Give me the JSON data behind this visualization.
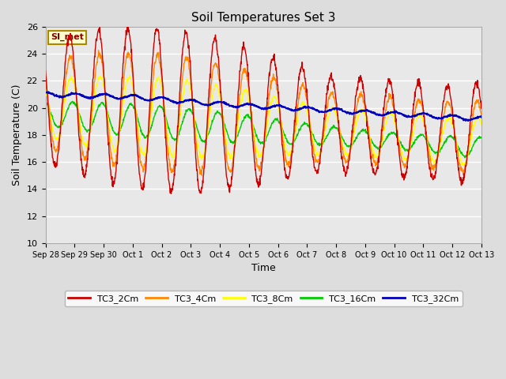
{
  "title": "Soil Temperatures Set 3",
  "xlabel": "Time",
  "ylabel": "Soil Temperature (C)",
  "ylim": [
    10,
    26
  ],
  "yticks": [
    10,
    12,
    14,
    16,
    18,
    20,
    22,
    24,
    26
  ],
  "fig_bg_color": "#dddddd",
  "plot_bg_color": "#e8e8e8",
  "series_colors": {
    "TC3_2Cm": "#cc0000",
    "TC3_4Cm": "#ff8800",
    "TC3_8Cm": "#ffff00",
    "TC3_16Cm": "#00cc00",
    "TC3_32Cm": "#0000bb"
  },
  "legend_label": "SI_met",
  "legend_bg": "#ffffcc",
  "legend_border": "#aa8800",
  "x_tick_labels": [
    "Sep 28",
    "Sep 29",
    "Sep 30",
    "Oct 1",
    "Oct 2",
    "Oct 3",
    "Oct 4",
    "Oct 5",
    "Oct 6",
    "Oct 7",
    "Oct 8",
    "Oct 9",
    "Oct 10",
    "Oct 11",
    "Oct 12",
    "Oct 13"
  ]
}
